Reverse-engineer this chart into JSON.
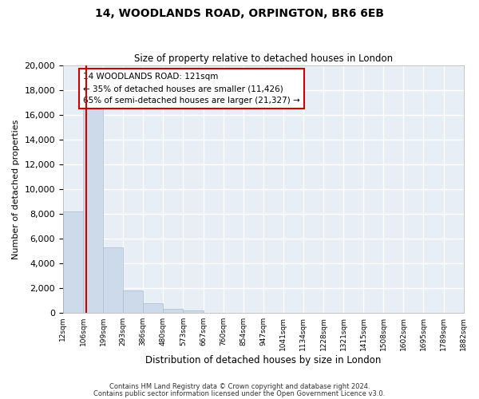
{
  "title": "14, WOODLANDS ROAD, ORPINGTON, BR6 6EB",
  "subtitle": "Size of property relative to detached houses in London",
  "xlabel": "Distribution of detached houses by size in London",
  "ylabel": "Number of detached properties",
  "bar_color": "#ccdaea",
  "bar_edge_color": "#aabcce",
  "background_color": "#ffffff",
  "plot_bg_color": "#e8eef5",
  "grid_color": "#ffffff",
  "vline_x": 121,
  "vline_color": "#cc0000",
  "annotation_title": "14 WOODLANDS ROAD: 121sqm",
  "annotation_line2": "← 35% of detached houses are smaller (11,426)",
  "annotation_line3": "65% of semi-detached houses are larger (21,327) →",
  "annotation_box_color": "#ffffff",
  "annotation_box_edge": "#cc0000",
  "ylim": [
    0,
    20000
  ],
  "yticks": [
    0,
    2000,
    4000,
    6000,
    8000,
    10000,
    12000,
    14000,
    16000,
    18000,
    20000
  ],
  "bin_edges": [
    12,
    106,
    199,
    293,
    386,
    480,
    573,
    667,
    760,
    854,
    947,
    1041,
    1134,
    1228,
    1321,
    1415,
    1508,
    1602,
    1695,
    1789,
    1882
  ],
  "bin_labels": [
    "12sqm",
    "106sqm",
    "199sqm",
    "293sqm",
    "386sqm",
    "480sqm",
    "573sqm",
    "667sqm",
    "760sqm",
    "854sqm",
    "947sqm",
    "1041sqm",
    "1134sqm",
    "1228sqm",
    "1321sqm",
    "1415sqm",
    "1508sqm",
    "1602sqm",
    "1695sqm",
    "1789sqm",
    "1882sqm"
  ],
  "bar_heights": [
    8200,
    16600,
    5300,
    1800,
    750,
    300,
    200,
    0,
    0,
    0,
    0,
    0,
    0,
    0,
    0,
    0,
    0,
    0,
    0,
    0
  ],
  "footer1": "Contains HM Land Registry data © Crown copyright and database right 2024.",
  "footer2": "Contains public sector information licensed under the Open Government Licence v3.0."
}
